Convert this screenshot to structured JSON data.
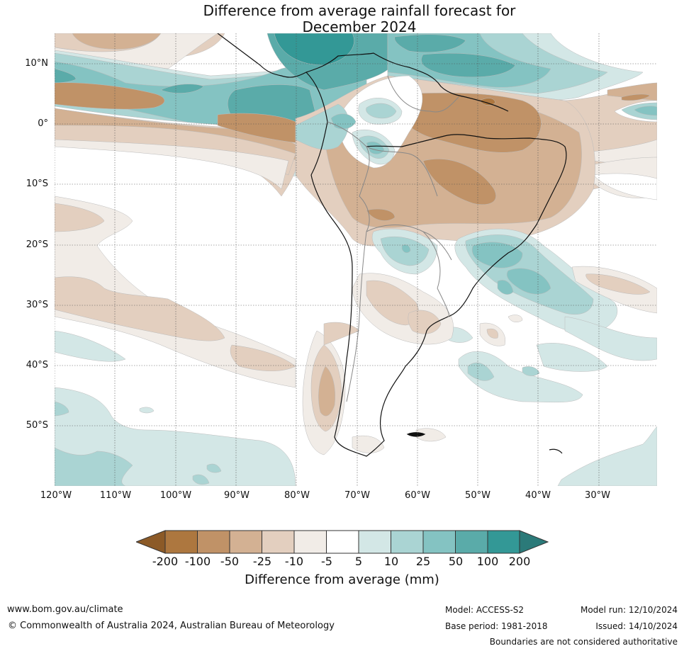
{
  "title": {
    "line1": "Difference from average rainfall forecast for",
    "line2": "December 2024"
  },
  "map": {
    "region": "South America",
    "lat_labels": [
      "10°N",
      "0°",
      "10°S",
      "20°S",
      "30°S",
      "40°S",
      "50°S"
    ],
    "lon_labels": [
      "120°W",
      "110°W",
      "100°W",
      "90°W",
      "80°W",
      "70°W",
      "60°W",
      "50°W",
      "40°W",
      "30°W"
    ]
  },
  "colorbar": {
    "label": "Difference from average (mm)",
    "ticks": [
      "-200",
      "-100",
      "-50",
      "-25",
      "-10",
      "-5",
      "5",
      "10",
      "25",
      "50",
      "100",
      "200"
    ],
    "colors": {
      "below_min": "#8c5a27",
      "c_200_100": "#ad773f",
      "c_100_50": "#c09267",
      "c_50_25": "#d3b193",
      "c_25_10": "#e3cfbf",
      "c_10_5": "#f1ece7",
      "c_5_5": "#ffffff",
      "c5_10": "#d3e7e6",
      "c10_25": "#aad4d3",
      "c25_50": "#84c3c2",
      "c50_100": "#5aaba9",
      "c100_200": "#339896",
      "above_max": "#2b7a79"
    }
  },
  "footer": {
    "url": "www.bom.gov.au/climate",
    "copyright": "© Commonwealth of Australia 2024, Australian Bureau of Meteorology",
    "model": "Model: ACCESS-S2",
    "model_run": "Model run: 12/10/2024",
    "base_period": "Base period: 1981-2018",
    "issued": "Issued: 14/10/2024",
    "disclaimer": "Boundaries are not considered authoritative"
  }
}
